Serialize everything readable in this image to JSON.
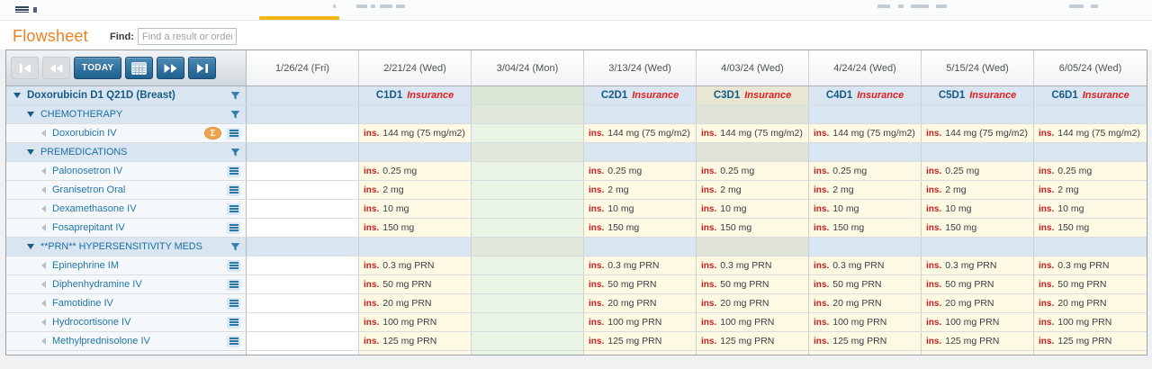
{
  "header": {
    "title": "Flowsheet",
    "find_label": "Find:",
    "find_placeholder": "Find a result or order"
  },
  "toolbar": {
    "today_label": "TODAY",
    "buttons": [
      "go-first",
      "go-back",
      "today",
      "calendar",
      "go-forward",
      "go-last"
    ]
  },
  "grid": {
    "ins_prefix": "ins.",
    "columns": [
      {
        "date": "1/26/24 (Fri)",
        "cycle": "",
        "ins": "",
        "kind": "empty"
      },
      {
        "date": "2/21/24 (Wed)",
        "cycle": "C1D1",
        "ins": "Insurance",
        "kind": "treatment"
      },
      {
        "date": "3/04/24 (Mon)",
        "cycle": "",
        "ins": "",
        "kind": "green"
      },
      {
        "date": "3/13/24 (Wed)",
        "cycle": "C2D1",
        "ins": "Insurance",
        "kind": "treatment"
      },
      {
        "date": "4/03/24 (Wed)",
        "cycle": "C3D1",
        "ins": "Insurance",
        "kind": "treatment-today"
      },
      {
        "date": "4/24/24 (Wed)",
        "cycle": "C4D1",
        "ins": "Insurance",
        "kind": "treatment"
      },
      {
        "date": "5/15/24 (Wed)",
        "cycle": "C5D1",
        "ins": "Insurance",
        "kind": "treatment"
      },
      {
        "date": "6/05/24 (Wed)",
        "cycle": "C6D1",
        "ins": "Insurance",
        "kind": "treatment"
      }
    ],
    "rows": [
      {
        "type": "group",
        "label": "Doxorubicin D1 Q21D (Breast)",
        "has_filter": true
      },
      {
        "type": "section",
        "label": "CHEMOTHERAPY",
        "has_filter": true
      },
      {
        "type": "med",
        "label": "Doxorubicin IV",
        "value": "144 mg (75 mg/m2)",
        "badge": "Σ"
      },
      {
        "type": "section",
        "label": "PREMEDICATIONS",
        "has_filter": true
      },
      {
        "type": "med",
        "label": "Palonosetron IV",
        "value": "0.25 mg"
      },
      {
        "type": "med",
        "label": "Granisetron Oral",
        "value": "2 mg"
      },
      {
        "type": "med",
        "label": "Dexamethasone IV",
        "value": "10 mg"
      },
      {
        "type": "med",
        "label": "Fosaprepitant IV",
        "value": "150 mg"
      },
      {
        "type": "section",
        "label": "**PRN** HYPERSENSITIVITY MEDS",
        "has_filter": true
      },
      {
        "type": "med",
        "label": "Epinephrine IM",
        "value": "0.3 mg PRN"
      },
      {
        "type": "med",
        "label": "Diphenhydramine IV",
        "value": "50 mg PRN"
      },
      {
        "type": "med",
        "label": "Famotidine IV",
        "value": "20 mg PRN"
      },
      {
        "type": "med",
        "label": "Hydrocortisone IV",
        "value": "100 mg PRN"
      },
      {
        "type": "med",
        "label": "Methylprednisolone IV",
        "value": "125 mg PRN"
      }
    ]
  },
  "colors": {
    "accent_orange": "#ee8220",
    "tab_underline": "#f3b617",
    "ins_red": "#c51f1f",
    "insurance_red": "#e51d1d",
    "cycle_blue": "#155c86",
    "button_blue": "#1f5f8d",
    "cell_yellow": "#fdf9e2",
    "cell_green": "#eaf4e4",
    "band_blue": "#d9e5f1",
    "today_tan": "#e9e6d4",
    "badge_orange": "#f0a24c"
  }
}
